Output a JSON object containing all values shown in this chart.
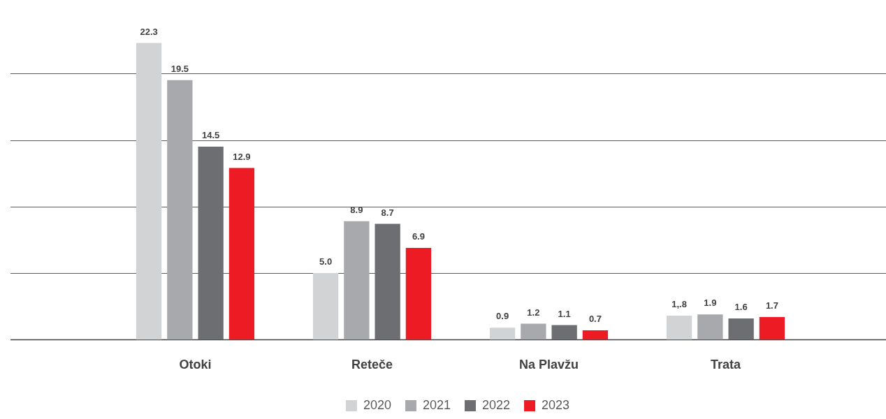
{
  "chart_data": {
    "type": "bar",
    "categories": [
      "Otoki",
      "Reteče",
      "Na Plavžu",
      "Trata"
    ],
    "series": [
      {
        "name": "2020",
        "color": "#d1d3d4",
        "values": [
          22.3,
          5.0,
          0.9,
          1.8
        ],
        "value_labels": [
          "22.3",
          "5.0",
          "0.9",
          "1,.8"
        ]
      },
      {
        "name": "2021",
        "color": "#a7a9ac",
        "values": [
          19.5,
          8.9,
          1.2,
          1.9
        ],
        "value_labels": [
          "19.5",
          "8.9",
          "1.2",
          "1.9"
        ]
      },
      {
        "name": "2022",
        "color": "#6d6e71",
        "values": [
          14.5,
          8.7,
          1.1,
          1.6
        ],
        "value_labels": [
          "14.5",
          "8.7",
          "1.1",
          "1.6"
        ]
      },
      {
        "name": "2023",
        "color": "#ed1c24",
        "values": [
          12.9,
          6.9,
          0.7,
          1.7
        ],
        "value_labels": [
          "12.9",
          "6.9",
          "0.7",
          "1.7"
        ]
      }
    ],
    "yticks": [
      {
        "value": 0,
        "label": null
      },
      {
        "value": 5,
        "label": null
      },
      {
        "value": 10,
        "label": null
      },
      {
        "value": 15,
        "label": null
      },
      {
        "value": 20,
        "label": null
      }
    ],
    "tick_labels": "x",
    "grid": "y",
    "legend": "bottom"
  }
}
